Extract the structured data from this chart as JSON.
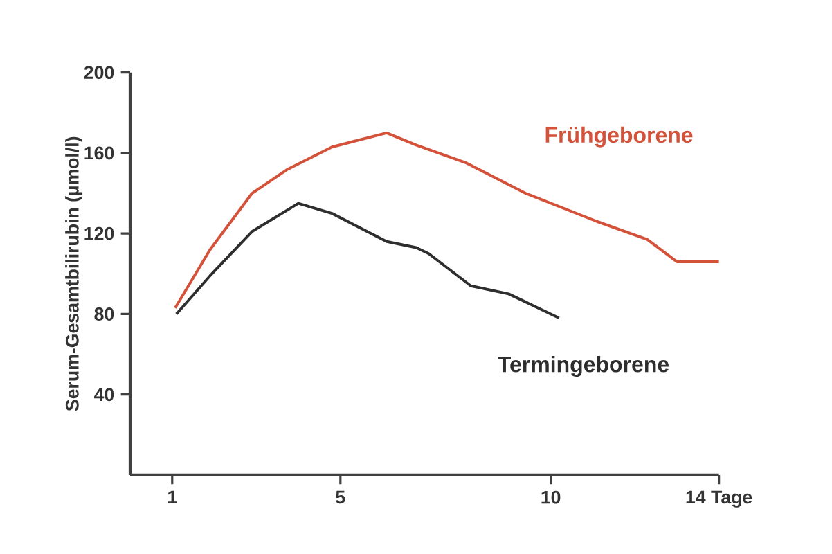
{
  "chart_data": {
    "type": "line",
    "ylabel": "Serum-Gesamtbilirubin (µmol/l)",
    "xlim": [
      0,
      14
    ],
    "ylim": [
      0,
      200
    ],
    "xticks": [
      1,
      5,
      10,
      {
        "value": 14,
        "label": "14 Tage"
      }
    ],
    "yticks": [
      40,
      80,
      120,
      160,
      200
    ],
    "grid": false,
    "legend": false,
    "series": [
      {
        "name": "Frühgeborene",
        "color": "#d4513a",
        "x": [
          1.07,
          1.9,
          2.9,
          3.75,
          4.8,
          6.1,
          6.8,
          8.0,
          9.4,
          11.1,
          12.3,
          13.0,
          14.0
        ],
        "values": [
          83,
          112,
          140,
          152,
          163,
          170,
          164,
          155,
          140,
          126,
          117,
          106,
          106
        ]
      },
      {
        "name": "Termingeborene",
        "color": "#2e2e2e",
        "x": [
          1.1,
          1.9,
          2.9,
          4.0,
          4.8,
          6.1,
          6.8,
          7.1,
          8.1,
          9.0,
          10.2
        ],
        "values": [
          80,
          99,
          121,
          135,
          130,
          116,
          113,
          110,
          94,
          90,
          78
        ]
      }
    ]
  }
}
